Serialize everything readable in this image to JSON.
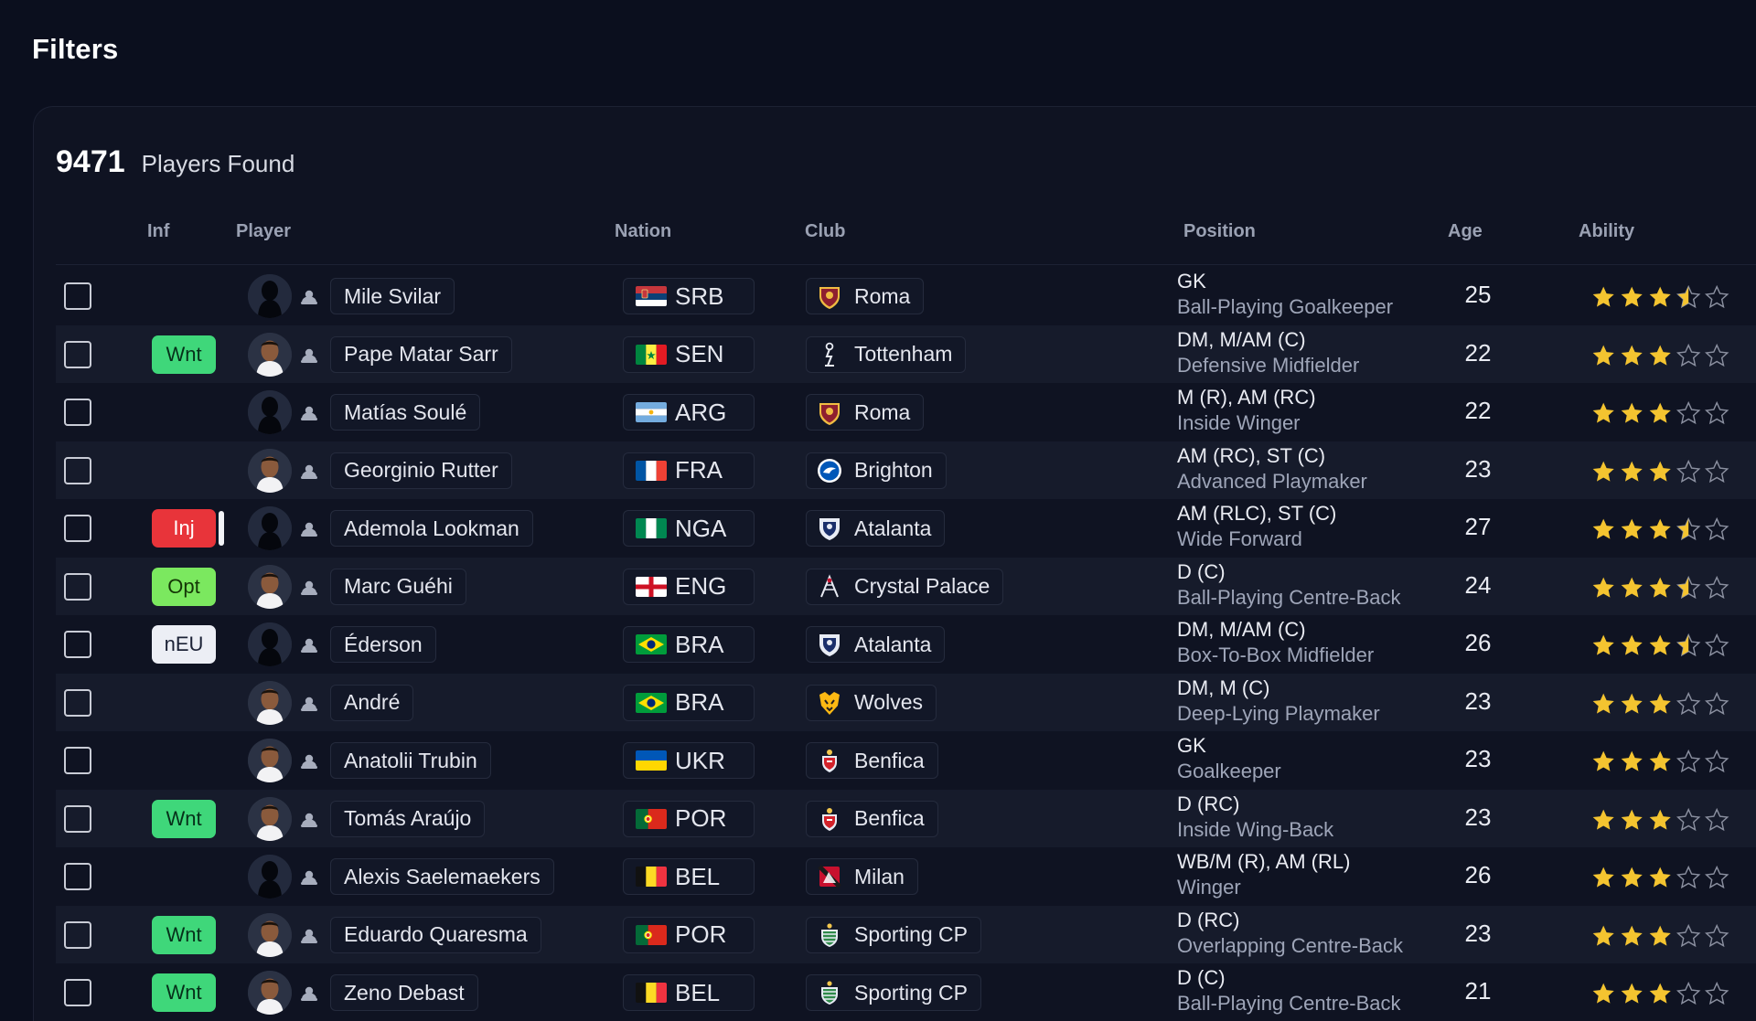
{
  "page": {
    "title": "Filters"
  },
  "results": {
    "count": "9471",
    "label": "Players Found"
  },
  "columns": {
    "inf": "Inf",
    "player": "Player",
    "nation": "Nation",
    "club": "Club",
    "position": "Position",
    "age": "Age",
    "ability": "Ability"
  },
  "colors": {
    "wnt": "#3fd77a",
    "opt": "#7be85f",
    "inj": "#e8343a",
    "neu": "#eceef5",
    "star": "#f4c430"
  },
  "players": [
    {
      "name": "Mile Svilar",
      "badge": "",
      "badge_type": "",
      "nation": "SRB",
      "club": "Roma",
      "crest": "roma-crest-icon",
      "position": "GK",
      "role": "Ball-Playing Goalkeeper",
      "age": "25",
      "ability": 3.5,
      "face": "silhouette"
    },
    {
      "name": "Pape Matar Sarr",
      "badge": "Wnt",
      "badge_type": "wnt",
      "nation": "SEN",
      "club": "Tottenham",
      "crest": "tottenham-crest-icon",
      "position": "DM, M/AM (C)",
      "role": "Defensive Midfielder",
      "age": "22",
      "ability": 3,
      "face": "photo"
    },
    {
      "name": "Matías Soulé",
      "badge": "",
      "badge_type": "",
      "nation": "ARG",
      "club": "Roma",
      "crest": "roma-crest-icon",
      "position": "M (R), AM (RC)",
      "role": "Inside Winger",
      "age": "22",
      "ability": 3,
      "face": "silhouette"
    },
    {
      "name": "Georginio Rutter",
      "badge": "",
      "badge_type": "",
      "nation": "FRA",
      "club": "Brighton",
      "crest": "brighton-crest-icon",
      "position": "AM (RC), ST (C)",
      "role": "Advanced Playmaker",
      "age": "23",
      "ability": 3,
      "face": "photo"
    },
    {
      "name": "Ademola Lookman",
      "badge": "Inj",
      "badge_type": "inj",
      "nation": "NGA",
      "club": "Atalanta",
      "crest": "atalanta-crest-icon",
      "position": "AM (RLC), ST (C)",
      "role": "Wide Forward",
      "age": "27",
      "ability": 3.5,
      "face": "silhouette"
    },
    {
      "name": "Marc Guéhi",
      "badge": "Opt",
      "badge_type": "opt",
      "nation": "ENG",
      "club": "Crystal Palace",
      "crest": "crystal-palace-crest-icon",
      "position": "D (C)",
      "role": "Ball-Playing Centre-Back",
      "age": "24",
      "ability": 3.5,
      "face": "photo"
    },
    {
      "name": "Éderson",
      "badge": "nEU",
      "badge_type": "neu",
      "nation": "BRA",
      "club": "Atalanta",
      "crest": "atalanta-crest-icon",
      "position": "DM, M/AM (C)",
      "role": "Box-To-Box Midfielder",
      "age": "26",
      "ability": 3.5,
      "face": "silhouette"
    },
    {
      "name": "André",
      "badge": "",
      "badge_type": "",
      "nation": "BRA",
      "club": "Wolves",
      "crest": "wolves-crest-icon",
      "position": "DM, M (C)",
      "role": "Deep-Lying Playmaker",
      "age": "23",
      "ability": 3,
      "face": "photo"
    },
    {
      "name": "Anatolii Trubin",
      "badge": "",
      "badge_type": "",
      "nation": "UKR",
      "club": "Benfica",
      "crest": "benfica-crest-icon",
      "position": "GK",
      "role": "Goalkeeper",
      "age": "23",
      "ability": 3,
      "face": "photo"
    },
    {
      "name": "Tomás Araújo",
      "badge": "Wnt",
      "badge_type": "wnt",
      "nation": "POR",
      "club": "Benfica",
      "crest": "benfica-crest-icon",
      "position": "D (RC)",
      "role": "Inside Wing-Back",
      "age": "23",
      "ability": 3,
      "face": "photo"
    },
    {
      "name": "Alexis Saelemaekers",
      "badge": "",
      "badge_type": "",
      "nation": "BEL",
      "club": "Milan",
      "crest": "milan-crest-icon",
      "position": "WB/M (R), AM (RL)",
      "role": "Winger",
      "age": "26",
      "ability": 3,
      "face": "silhouette"
    },
    {
      "name": "Eduardo Quaresma",
      "badge": "Wnt",
      "badge_type": "wnt",
      "nation": "POR",
      "club": "Sporting CP",
      "crest": "sporting-crest-icon",
      "position": "D (RC)",
      "role": "Overlapping Centre-Back",
      "age": "23",
      "ability": 3,
      "face": "photo"
    },
    {
      "name": "Zeno Debast",
      "badge": "Wnt",
      "badge_type": "wnt",
      "nation": "BEL",
      "club": "Sporting CP",
      "crest": "sporting-crest-icon",
      "position": "D (C)",
      "role": "Ball-Playing Centre-Back",
      "age": "21",
      "ability": 3,
      "face": "photo"
    }
  ]
}
